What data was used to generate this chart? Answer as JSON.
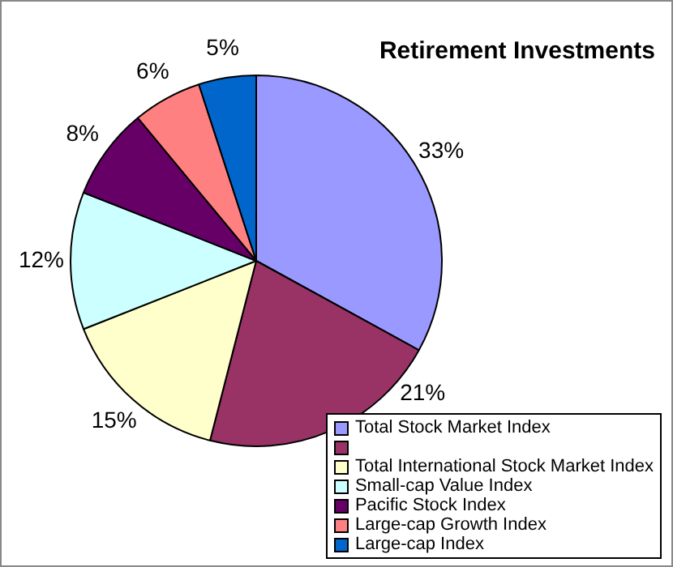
{
  "chart_data": {
    "type": "pie",
    "title": "Retirement Investments",
    "categories": [
      "Total Stock Market Index",
      null,
      "Total International Stock Market Index",
      "Small-cap Value Index",
      "Pacific Stock Index",
      "Large-cap Growth Index",
      "Large-cap Index"
    ],
    "values": [
      33,
      21,
      15,
      12,
      8,
      6,
      5
    ],
    "value_labels": [
      "33%",
      "21%",
      "15%",
      "12%",
      "8%",
      "6%",
      "5%"
    ],
    "colors": [
      "#9999ff",
      "#993366",
      "#ffffcc",
      "#ccffff",
      "#660066",
      "#ff8080",
      "#0066cc"
    ],
    "legend": "bottom right"
  }
}
